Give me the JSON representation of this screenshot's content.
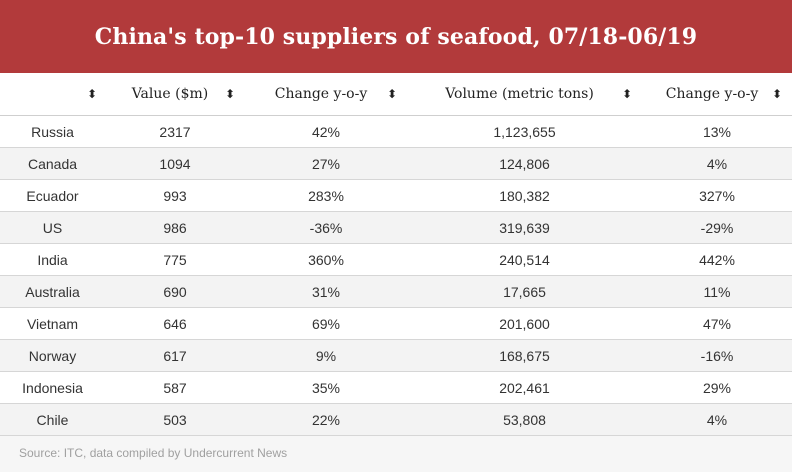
{
  "title": "China's top-10 suppliers of seafood, 07/18-06/19",
  "colors": {
    "header_bg": "#b23a3b",
    "row_alt": "#f3f3f3"
  },
  "columns": [
    "",
    "Value ($m)",
    "Change y-o-y",
    "Volume (metric tons)",
    "Change y-o-y"
  ],
  "sort_icon": "sort-icon",
  "sort_glyph": "⬍",
  "rows": [
    [
      "Russia",
      "2317",
      "42%",
      "1,123,655",
      "13%"
    ],
    [
      "Canada",
      "1094",
      "27%",
      "124,806",
      "4%"
    ],
    [
      "Ecuador",
      "993",
      "283%",
      "180,382",
      "327%"
    ],
    [
      "US",
      "986",
      "-36%",
      "319,639",
      "-29%"
    ],
    [
      "India",
      "775",
      "360%",
      "240,514",
      "442%"
    ],
    [
      "Australia",
      "690",
      "31%",
      "17,665",
      "11%"
    ],
    [
      "Vietnam",
      "646",
      "69%",
      "201,600",
      "47%"
    ],
    [
      "Norway",
      "617",
      "9%",
      "168,675",
      "-16%"
    ],
    [
      "Indonesia",
      "587",
      "35%",
      "202,461",
      "29%"
    ],
    [
      "Chile",
      "503",
      "22%",
      "53,808",
      "4%"
    ]
  ],
  "source": "Source: ITC, data compiled by Undercurrent News",
  "chart_data": {
    "type": "table",
    "title": "China's top-10 suppliers of seafood, 07/18-06/19",
    "columns": [
      "",
      "Value ($m)",
      "Change y-o-y",
      "Volume (metric tons)",
      "Change y-o-y"
    ],
    "rows": [
      [
        "Russia",
        2317,
        "42%",
        1123655,
        "13%"
      ],
      [
        "Canada",
        1094,
        "27%",
        124806,
        "4%"
      ],
      [
        "Ecuador",
        993,
        "283%",
        180382,
        "327%"
      ],
      [
        "US",
        986,
        "-36%",
        319639,
        "-29%"
      ],
      [
        "India",
        775,
        "360%",
        240514,
        "442%"
      ],
      [
        "Australia",
        690,
        "31%",
        17665,
        "11%"
      ],
      [
        "Vietnam",
        646,
        "69%",
        201600,
        "47%"
      ],
      [
        "Norway",
        617,
        "9%",
        168675,
        "-16%"
      ],
      [
        "Indonesia",
        587,
        "35%",
        202461,
        "29%"
      ],
      [
        "Chile",
        503,
        "22%",
        53808,
        "4%"
      ]
    ]
  }
}
